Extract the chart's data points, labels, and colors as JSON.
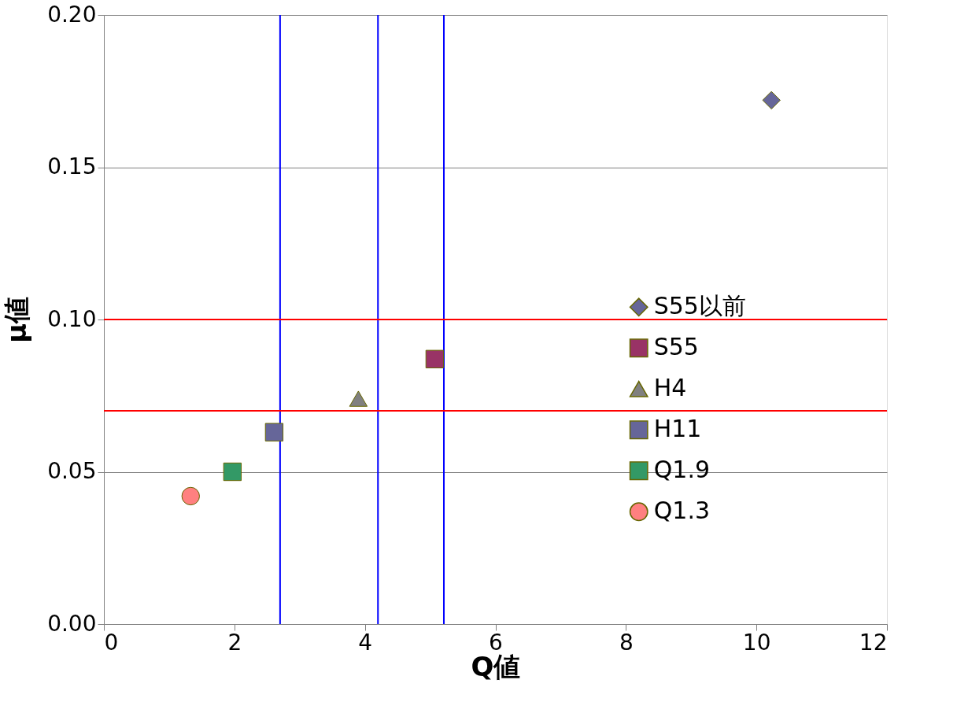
{
  "chart_data": {
    "type": "scatter",
    "xlabel": "Q値",
    "ylabel": "μ値",
    "xlim": [
      0,
      12
    ],
    "xticks": [
      0,
      2,
      4,
      6,
      8,
      10,
      12
    ],
    "ylim": [
      0,
      0.2
    ],
    "yticks": [
      {
        "value": 0,
        "label": "0.00"
      },
      {
        "value": 0.05,
        "label": "0.05"
      },
      {
        "value": 0.1,
        "label": "0.10"
      },
      {
        "value": 0.15,
        "label": "0.15"
      },
      {
        "value": 0.2,
        "label": "0.20"
      }
    ],
    "grid": "y",
    "legend": "right",
    "series": [
      {
        "name": "S55以前",
        "color": "#666699",
        "marker": "diamond",
        "x": [
          10.23
        ],
        "values": [
          0.172
        ]
      },
      {
        "name": "S55",
        "color": "#993366",
        "marker": "square",
        "x": [
          5.07
        ],
        "values": [
          0.087
        ]
      },
      {
        "name": "H4",
        "color": "#808080",
        "marker": "triangle",
        "x": [
          3.9
        ],
        "values": [
          0.074
        ]
      },
      {
        "name": "H11",
        "color": "#666699",
        "marker": "square",
        "x": [
          2.61
        ],
        "values": [
          0.063
        ]
      },
      {
        "name": "Q1.9",
        "color": "#339966",
        "marker": "square",
        "x": [
          1.97
        ],
        "values": [
          0.05
        ]
      },
      {
        "name": "Q1.3",
        "color": "#ff8080",
        "marker": "circle",
        "x": [
          1.33
        ],
        "values": [
          0.042
        ]
      }
    ],
    "ref_lines": [
      {
        "axis": "x",
        "value": 2.7,
        "color": "#0000ff"
      },
      {
        "axis": "x",
        "value": 4.2,
        "color": "#0000ff"
      },
      {
        "axis": "x",
        "value": 5.21,
        "color": "#0000ff"
      },
      {
        "axis": "y",
        "value": 0.1,
        "color": "#ff0000"
      },
      {
        "axis": "y",
        "value": 0.07,
        "color": "#ff0000"
      }
    ]
  }
}
